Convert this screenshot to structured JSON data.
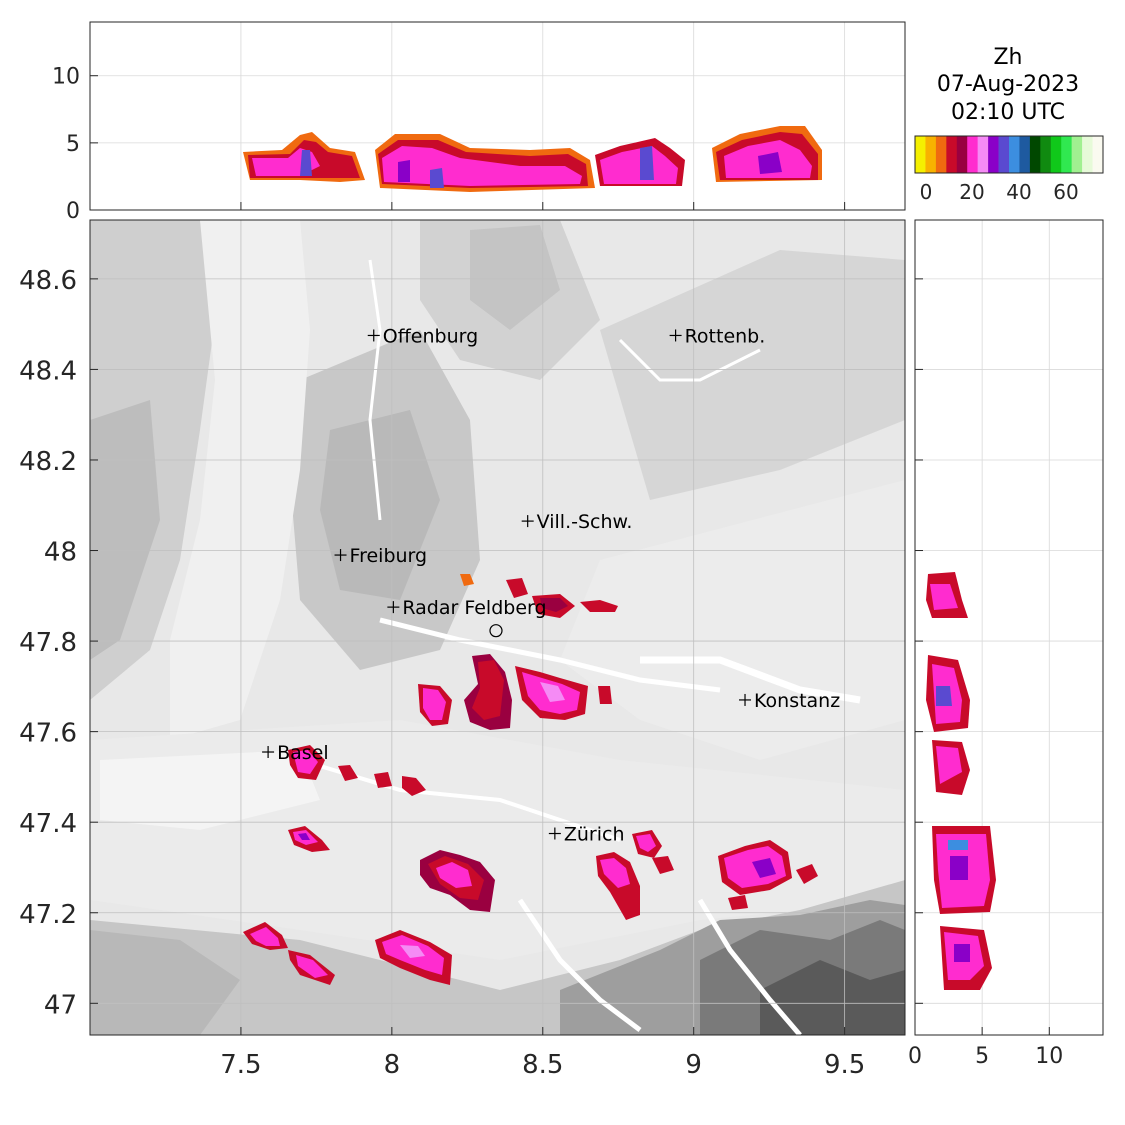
{
  "title": {
    "field": "Zh",
    "date": "07-Aug-2023",
    "time": "02:10 UTC"
  },
  "colorbar": {
    "colors": [
      "#f5f000",
      "#f8b200",
      "#f06a10",
      "#c80a2a",
      "#9a0040",
      "#ff2ccf",
      "#f58bf5",
      "#8a00c8",
      "#5a4ad0",
      "#3c8ee0",
      "#1e5aa0",
      "#004800",
      "#108a10",
      "#10c81a",
      "#30e850",
      "#a0f090",
      "#e6fad8",
      "#fafaf0"
    ],
    "tick_labels": [
      "0",
      "20",
      "40",
      "60"
    ]
  },
  "map": {
    "x_ticks": [
      "7.5",
      "8",
      "8.5",
      "9",
      "9.5"
    ],
    "y_ticks": [
      "48.6",
      "48.4",
      "48.2",
      "48",
      "47.8",
      "47.6",
      "47.4",
      "47.2",
      "47"
    ],
    "xlim": [
      7.0,
      9.7
    ],
    "ylim": [
      46.93,
      48.73
    ],
    "cities": [
      {
        "name": "Offenburg",
        "lon": 7.94,
        "lat": 48.475
      },
      {
        "name": "Rottenb.",
        "lon": 8.94,
        "lat": 48.475
      },
      {
        "name": "Vill.-Schw.",
        "lon": 8.45,
        "lat": 48.065
      },
      {
        "name": "Freiburg",
        "lon": 7.83,
        "lat": 47.99
      },
      {
        "name": "Radar Feldberg",
        "lon": 8.005,
        "lat": 47.875
      },
      {
        "name": "Konstanz",
        "lon": 9.17,
        "lat": 47.67
      },
      {
        "name": "Basel",
        "lon": 7.59,
        "lat": 47.555
      },
      {
        "name": "Zürich",
        "lon": 8.54,
        "lat": 47.375
      }
    ],
    "radar_site": {
      "lon": 8.345,
      "lat": 47.823
    }
  },
  "top_panel": {
    "y_ticks": [
      "0",
      "5",
      "10"
    ],
    "ylim": [
      0,
      14
    ]
  },
  "right_panel": {
    "x_ticks": [
      "0",
      "5",
      "10"
    ],
    "xlim": [
      0,
      14
    ]
  }
}
